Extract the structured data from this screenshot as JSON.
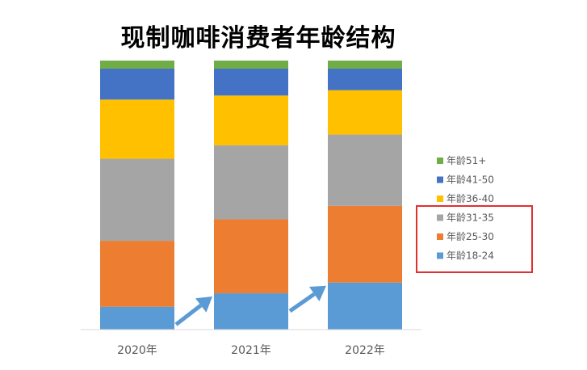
{
  "chart_data": {
    "type": "bar",
    "stacked": true,
    "normalized": true,
    "title": "现制咖啡消费者年龄结构",
    "xlabel": "",
    "ylabel": "",
    "ylim": [
      0,
      100
    ],
    "grid": false,
    "legend_position": "right",
    "categories": [
      "2020年",
      "2021年",
      "2022年"
    ],
    "series": [
      {
        "name": "年龄18-24",
        "color": "#5B9BD5",
        "values": [
          8.5,
          13.5,
          17.5
        ]
      },
      {
        "name": "年龄25-30",
        "color": "#ED7D31",
        "values": [
          24.5,
          27.5,
          28.5
        ]
      },
      {
        "name": "年龄31-35",
        "color": "#A5A5A5",
        "values": [
          30.5,
          27.5,
          26.5
        ]
      },
      {
        "name": "年龄36-40",
        "color": "#FFC000",
        "values": [
          22,
          18.5,
          16.5
        ]
      },
      {
        "name": "年龄41-50",
        "color": "#4472C4",
        "values": [
          11.5,
          10,
          8
        ]
      },
      {
        "name": "年龄51+",
        "color": "#70AD47",
        "values": [
          3,
          3,
          3
        ]
      }
    ]
  },
  "highlight": {
    "color": "#E03030"
  },
  "arrows": {
    "color": "#5B9BD5"
  }
}
